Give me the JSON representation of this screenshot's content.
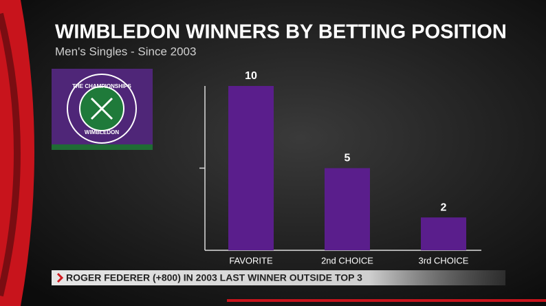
{
  "chart_data": {
    "type": "bar",
    "title": "WIMBLEDON WINNERS BY BETTING POSITION",
    "subtitle": "Men's Singles - Since 2003",
    "categories": [
      "FAVORITE",
      "2nd CHOICE",
      "3rd CHOICE"
    ],
    "values": [
      10,
      5,
      2
    ],
    "color": "#5a1e8c",
    "ylim": [
      0,
      10
    ],
    "yticks": [
      5
    ],
    "footer": "ROGER FEDERER (+800) IN 2003 LAST WINNER OUTSIDE TOP 3"
  },
  "logo": {
    "top_text": "THE CHAMPIONSHIPS",
    "bottom_text": "WIMBLEDON"
  }
}
